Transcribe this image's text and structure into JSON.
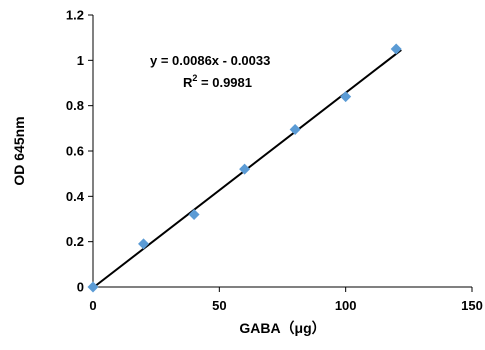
{
  "chart_data": {
    "type": "scatter",
    "xlabel": "GABA（μg）",
    "ylabel": "OD 645nm",
    "xlim": [
      0,
      150
    ],
    "ylim": [
      0,
      1.2
    ],
    "x_ticks": [
      0,
      50,
      100,
      150
    ],
    "y_ticks": [
      0,
      0.2,
      0.4,
      0.6,
      0.8,
      1,
      1.2
    ],
    "x_tick_labels": [
      "0",
      "50",
      "100",
      "150"
    ],
    "y_tick_labels": [
      "0",
      "0.2",
      "0.4",
      "0.6",
      "0.8",
      "1",
      "1.2"
    ],
    "grid": false,
    "series": [
      {
        "x": [
          0,
          20,
          40,
          60,
          80,
          100,
          120
        ],
        "y": [
          0.0,
          0.19,
          0.32,
          0.52,
          0.695,
          0.84,
          1.05
        ],
        "marker": "diamond",
        "color": "#5b9bd5"
      }
    ],
    "trendline": {
      "slope": 0.0086,
      "intercept": -0.0033,
      "x_range": [
        0,
        122
      ],
      "color": "#000000"
    },
    "annotations": {
      "equation": "y = 0.0086x - 0.0033",
      "r_squared_prefix": "R",
      "r_squared_sup": "2",
      "r_squared_value": " = 0.9981"
    }
  }
}
